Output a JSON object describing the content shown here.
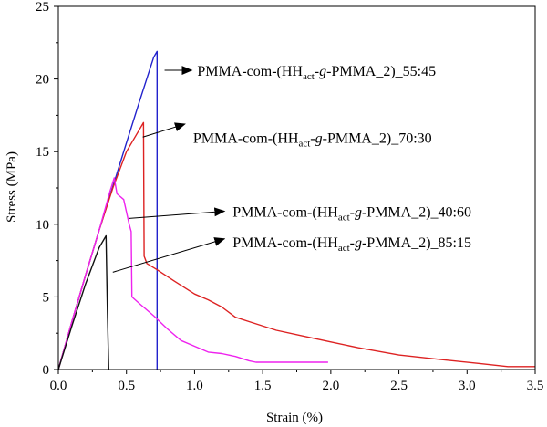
{
  "chart_data": {
    "type": "line",
    "xlabel": "Strain (%)",
    "ylabel": "Stress (MPa)",
    "xlim": [
      0,
      3.5
    ],
    "ylim": [
      0,
      25
    ],
    "xticks": [
      "0.0",
      "0.5",
      "1.0",
      "1.5",
      "2.0",
      "2.5",
      "3.0",
      "3.5"
    ],
    "yticks": [
      "0",
      "5",
      "10",
      "15",
      "20",
      "25"
    ],
    "grid": false,
    "series": [
      {
        "name": "PMMA-com-(HHact-g-PMMA_2)_55:45",
        "label": {
          "pre": "PMMA-com-(HH",
          "sub": "act",
          "mid": "-",
          "ital": "g",
          "post": "-PMMA_2)_55:45"
        },
        "color": "#2222cc",
        "x": [
          0,
          0.1,
          0.2,
          0.3,
          0.4,
          0.5,
          0.6,
          0.7,
          0.725,
          0.725
        ],
        "y": [
          0,
          3.3,
          6.5,
          9.6,
          12.6,
          15.6,
          18.6,
          21.5,
          21.9,
          0
        ]
      },
      {
        "name": "PMMA-com-(HHact-g-PMMA_2)_70:30",
        "label": {
          "pre": "PMMA-com-(HH",
          "sub": "act",
          "mid": "-",
          "ital": "g",
          "post": "-PMMA_2)_70:30"
        },
        "color": "#dd2222",
        "x": [
          0,
          0.1,
          0.2,
          0.3,
          0.4,
          0.5,
          0.6,
          0.625,
          0.63,
          0.65,
          0.72,
          0.85,
          1.0,
          1.1,
          1.2,
          1.3,
          1.4,
          1.6,
          1.8,
          2.0,
          2.2,
          2.5,
          2.8,
          3.1,
          3.3,
          3.5
        ],
        "y": [
          0,
          3.3,
          6.5,
          9.6,
          12.5,
          15.0,
          16.6,
          17.0,
          7.8,
          7.3,
          6.9,
          6.1,
          5.2,
          4.8,
          4.3,
          3.6,
          3.3,
          2.7,
          2.3,
          1.9,
          1.5,
          1.0,
          0.7,
          0.4,
          0.2,
          0.2
        ]
      },
      {
        "name": "PMMA-com-(HHact-g-PMMA_2)_40:60",
        "label": {
          "pre": "PMMA-com-(HH",
          "sub": "act",
          "mid": "-",
          "ital": "g",
          "post": "-PMMA_2)_40:60"
        },
        "color": "#ee22ee",
        "x": [
          0,
          0.1,
          0.2,
          0.3,
          0.38,
          0.41,
          0.43,
          0.48,
          0.52,
          0.535,
          0.54,
          0.6,
          0.7,
          0.8,
          0.9,
          1.0,
          1.1,
          1.2,
          1.3,
          1.4,
          1.45,
          1.6,
          1.8,
          1.98
        ],
        "y": [
          0,
          3.3,
          6.5,
          9.6,
          12.3,
          13.2,
          12.1,
          11.7,
          10.0,
          9.5,
          5.0,
          4.5,
          3.7,
          2.8,
          2.0,
          1.6,
          1.2,
          1.1,
          0.9,
          0.6,
          0.5,
          0.5,
          0.5,
          0.5
        ]
      },
      {
        "name": "PMMA-com-(HHact-g-PMMA_2)_85:15",
        "label": {
          "pre": "PMMA-com-(HH",
          "sub": "act",
          "mid": "-",
          "ital": "g",
          "post": "-PMMA_2)_85:15"
        },
        "color": "#111111",
        "x": [
          0,
          0.1,
          0.2,
          0.3,
          0.35,
          0.36,
          0.37
        ],
        "y": [
          0,
          3.0,
          5.9,
          8.4,
          9.2,
          4.0,
          0
        ]
      }
    ],
    "annotations": [
      {
        "series": 0,
        "arrow_from": [
          0.78,
          20.6
        ],
        "arrow_to": [
          0.98,
          20.6
        ],
        "text_at": [
          1.02,
          20.6
        ]
      },
      {
        "series": 1,
        "arrow_from": [
          0.62,
          16.0
        ],
        "arrow_to": [
          0.93,
          16.9
        ],
        "text_at": [
          0.99,
          16.0
        ]
      },
      {
        "series": 2,
        "arrow_from": [
          0.52,
          10.4
        ],
        "arrow_to": [
          1.22,
          10.9
        ],
        "text_at": [
          1.28,
          10.9
        ]
      },
      {
        "series": 3,
        "arrow_from": [
          0.4,
          6.7
        ],
        "arrow_to": [
          1.22,
          9.0
        ],
        "text_at": [
          1.28,
          8.8
        ]
      }
    ]
  }
}
